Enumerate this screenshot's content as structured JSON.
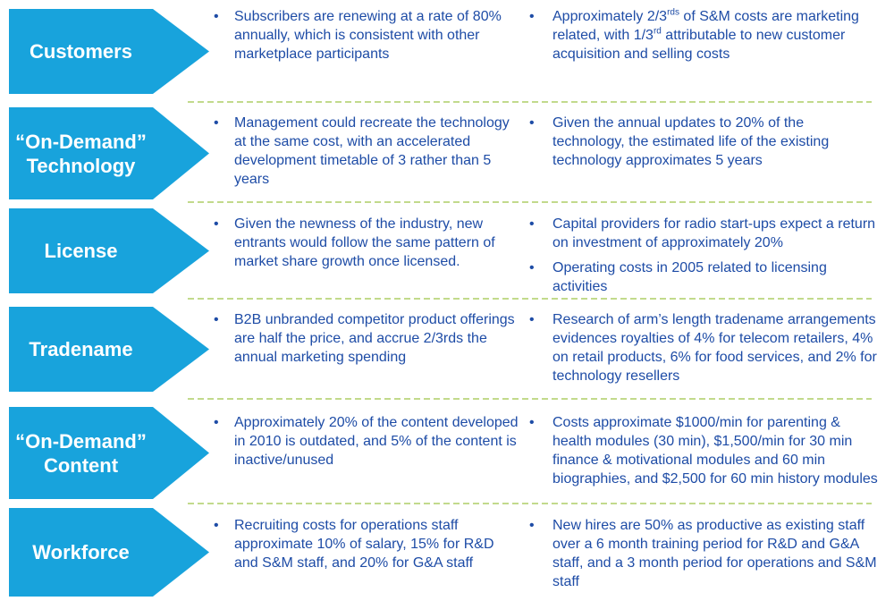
{
  "bullet_glyph": "•",
  "colors": {
    "arrow_blue": "#18A3DC",
    "text_blue": "#1E4CA6",
    "label_white": "#FFFFFF",
    "separator_green": "#C2DA8C",
    "background": "#FFFFFF"
  },
  "rows": [
    {
      "label": "Customers",
      "left": [
        [
          {
            "t": "Subscribers are renewing at a rate of 80% annually, which is consistent with other marketplace participants"
          }
        ]
      ],
      "right": [
        [
          {
            "t": "Approximately 2/3"
          },
          {
            "t": "rds",
            "sup": true
          },
          {
            "t": " of S&M costs are marketing related, with 1/3"
          },
          {
            "t": "rd",
            "sup": true
          },
          {
            "t": " attributable to new customer acquisition and selling costs"
          }
        ]
      ]
    },
    {
      "label": "“On-Demand”\nTechnology",
      "left": [
        [
          {
            "t": "Management could recreate the technology at the same cost, with an accelerated development timetable of 3 rather than 5 years"
          }
        ]
      ],
      "right": [
        [
          {
            "t": "Given the annual updates to 20% of the technology, the estimated life of the existing technology approximates 5 years"
          }
        ]
      ]
    },
    {
      "label": "License",
      "left": [
        [
          {
            "t": "Given the newness of the industry, new entrants would follow the same pattern of market share growth once licensed."
          }
        ]
      ],
      "right": [
        [
          {
            "t": "Capital providers for radio start-ups expect a return on investment of approximately 20%"
          }
        ],
        [
          {
            "t": "Operating costs in 2005 related to licensing activities"
          }
        ]
      ]
    },
    {
      "label": "Tradename",
      "left": [
        [
          {
            "t": "B2B unbranded competitor product offerings are half the price, and accrue 2/3rds the annual marketing spending"
          }
        ]
      ],
      "right": [
        [
          {
            "t": "Research of arm’s length tradename arrangements evidences royalties of 4% for telecom retailers, 4% on retail products, 6% for food services, and 2% for technology resellers"
          }
        ]
      ]
    },
    {
      "label": "“On-Demand”\nContent",
      "left": [
        [
          {
            "t": "Approximately 20% of the content developed in 2010 is outdated, and 5% of the content is inactive/unused"
          }
        ]
      ],
      "right": [
        [
          {
            "t": "Costs approximate $1000/min for parenting & health modules (30 min), $1,500/min for 30 min finance & motivational modules and 60 min biographies, and $2,500 for 60 min history modules"
          }
        ]
      ]
    },
    {
      "label": "Workforce",
      "left": [
        [
          {
            "t": "Recruiting costs for operations staff approximate 10% of salary, 15% for R&D and S&M staff, and 20% for G&A staff"
          }
        ]
      ],
      "right": [
        [
          {
            "t": "New hires are 50% as productive as existing staff over a 6 month training period for R&D and G&A staff, and a 3 month period for operations and S&M staff"
          }
        ]
      ]
    }
  ]
}
